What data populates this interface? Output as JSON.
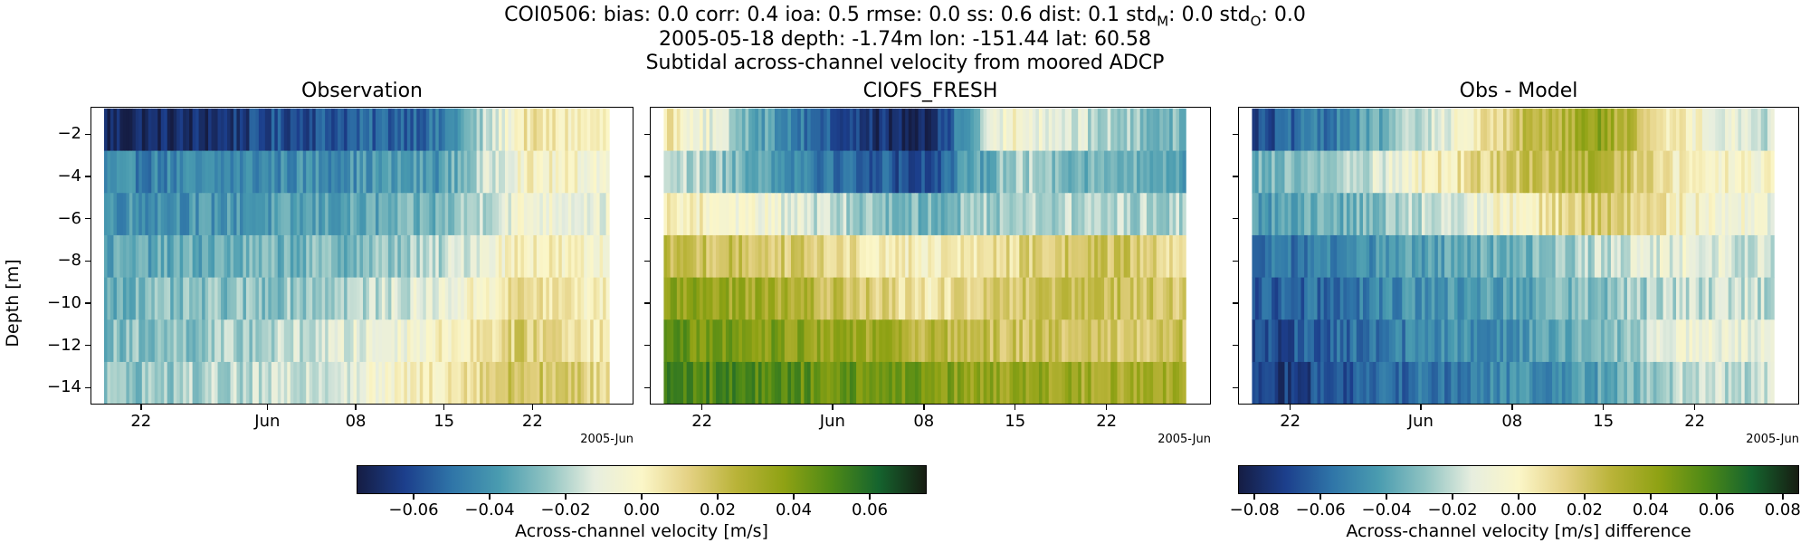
{
  "header": {
    "line1": "COI0506: bias: 0.0  corr: 0.4  ioa: 0.5  rmse: 0.0  ss: 0.6  dist: 0.1  std",
    "std_m_sub": "M",
    "line1_mid": ": 0.0  std",
    "std_o_sub": "O",
    "line1_end": ": 0.0",
    "line2": "2005-05-18 depth: -1.74m lon: -151.44 lat: 60.58",
    "line3": "Subtidal across-channel velocity from moored ADCP"
  },
  "colors": {
    "colormap": [
      "#151d44",
      "#1c3f8c",
      "#2f75a8",
      "#4a9cb0",
      "#8fc3c2",
      "#e7eedf",
      "#fbf6c8",
      "#e4d183",
      "#b9b338",
      "#8fa214",
      "#4f8a16",
      "#15642e",
      "#171d12"
    ]
  },
  "chart_data": [
    {
      "type": "heatmap",
      "title": "Observation",
      "ylabel": "Depth [m]",
      "ylim": [
        -14.8,
        -0.7
      ],
      "yticks": [
        -2,
        -4,
        -6,
        -8,
        -10,
        -12,
        -14
      ],
      "ytick_labels": [
        "−2",
        "−4",
        "−6",
        "−8",
        "−10",
        "−12",
        "−14"
      ],
      "x_range": [
        "2005-05-18",
        "2005-06-30"
      ],
      "x_data_range": [
        "2005-05-19",
        "2005-06-28"
      ],
      "xticks": [
        "2005-05-22",
        "2005-06-01",
        "2005-06-08",
        "2005-06-15",
        "2005-06-22"
      ],
      "xtick_labels": [
        "22",
        "Jun",
        "08",
        "15",
        "22"
      ],
      "date_offset": "2005-Jun",
      "depths": [
        -1.74,
        -3.74,
        -5.74,
        -7.74,
        -9.74,
        -11.74,
        -13.74
      ],
      "clim": [
        -0.075,
        0.075
      ],
      "profile": [
        [
          -0.07,
          -0.07,
          -0.06,
          -0.055,
          -0.05,
          0.005,
          0.0
        ],
        [
          -0.045,
          -0.045,
          -0.043,
          -0.04,
          -0.038,
          0.0,
          -0.005
        ],
        [
          -0.04,
          -0.04,
          -0.038,
          -0.035,
          -0.03,
          -0.005,
          -0.01
        ],
        [
          -0.035,
          -0.033,
          -0.03,
          -0.028,
          -0.02,
          0.005,
          -0.005
        ],
        [
          -0.03,
          -0.028,
          -0.025,
          -0.02,
          -0.01,
          0.01,
          0.0
        ],
        [
          -0.028,
          -0.025,
          -0.02,
          -0.012,
          0.0,
          0.015,
          0.005
        ],
        [
          -0.026,
          -0.022,
          -0.018,
          -0.01,
          0.005,
          0.02,
          0.01
        ]
      ]
    },
    {
      "type": "heatmap",
      "title": "CIOFS_FRESH",
      "ylim": [
        -14.8,
        -0.7
      ],
      "x_range": [
        "2005-05-18",
        "2005-06-30"
      ],
      "x_data_range": [
        "2005-05-19",
        "2005-06-28"
      ],
      "xticks": [
        "2005-05-22",
        "2005-06-01",
        "2005-06-08",
        "2005-06-15",
        "2005-06-22"
      ],
      "xtick_labels": [
        "22",
        "Jun",
        "08",
        "15",
        "22"
      ],
      "date_offset": "2005-Jun",
      "depths": [
        -1.74,
        -3.74,
        -5.74,
        -7.74,
        -9.74,
        -11.74,
        -13.74
      ],
      "clim": [
        -0.075,
        0.075
      ],
      "profile": [
        [
          0.01,
          -0.03,
          -0.06,
          -0.075,
          0.0,
          -0.02,
          -0.03
        ],
        [
          -0.015,
          -0.03,
          -0.05,
          -0.06,
          -0.02,
          -0.03,
          -0.035
        ],
        [
          0.005,
          -0.005,
          -0.02,
          -0.03,
          -0.02,
          -0.02,
          -0.02
        ],
        [
          0.02,
          0.02,
          0.01,
          0.0,
          0.01,
          0.02,
          0.01
        ],
        [
          0.035,
          0.032,
          0.02,
          0.005,
          0.015,
          0.02,
          0.015
        ],
        [
          0.045,
          0.04,
          0.035,
          0.025,
          0.02,
          0.015,
          0.02
        ],
        [
          0.05,
          0.05,
          0.045,
          0.04,
          0.035,
          0.03,
          0.03
        ]
      ]
    },
    {
      "type": "heatmap",
      "title": "Obs - Model",
      "ylim": [
        -14.8,
        -0.7
      ],
      "x_range": [
        "2005-05-18",
        "2005-06-30"
      ],
      "x_data_range": [
        "2005-05-19",
        "2005-06-28"
      ],
      "xticks": [
        "2005-05-22",
        "2005-06-01",
        "2005-06-08",
        "2005-06-15",
        "2005-06-22"
      ],
      "xtick_labels": [
        "22",
        "Jun",
        "08",
        "15",
        "22"
      ],
      "date_offset": "2005-Jun",
      "depths": [
        -1.74,
        -3.74,
        -5.74,
        -7.74,
        -9.74,
        -11.74,
        -13.74
      ],
      "clim": [
        -0.085,
        0.085
      ],
      "profile": [
        [
          -0.07,
          -0.05,
          -0.02,
          0.02,
          0.04,
          0.0,
          -0.02
        ],
        [
          -0.035,
          -0.025,
          0.0,
          0.02,
          0.03,
          0.0,
          -0.005
        ],
        [
          -0.045,
          -0.035,
          -0.02,
          0.0,
          0.02,
          0.0,
          -0.01
        ],
        [
          -0.06,
          -0.05,
          -0.04,
          -0.035,
          -0.02,
          -0.01,
          -0.02
        ],
        [
          -0.065,
          -0.055,
          -0.045,
          -0.04,
          -0.03,
          -0.02,
          -0.02
        ],
        [
          -0.07,
          -0.06,
          -0.05,
          -0.045,
          -0.035,
          -0.01,
          -0.015
        ],
        [
          -0.075,
          -0.065,
          -0.055,
          -0.05,
          -0.04,
          -0.02,
          -0.02
        ]
      ]
    }
  ],
  "colorbars": [
    {
      "label": "Across-channel velocity [m/s]",
      "range": [
        -0.075,
        0.075
      ],
      "ticks": [
        -0.06,
        -0.04,
        -0.02,
        0.0,
        0.02,
        0.04,
        0.06
      ],
      "tick_labels": [
        "−0.06",
        "−0.04",
        "−0.02",
        "0.00",
        "0.02",
        "0.04",
        "0.06"
      ]
    },
    {
      "label": "Across-channel velocity [m/s] difference",
      "range": [
        -0.085,
        0.085
      ],
      "ticks": [
        -0.08,
        -0.06,
        -0.04,
        -0.02,
        0.0,
        0.02,
        0.04,
        0.06,
        0.08
      ],
      "tick_labels": [
        "−0.08",
        "−0.06",
        "−0.04",
        "−0.02",
        "0.00",
        "0.02",
        "0.04",
        "0.06",
        "0.08"
      ]
    }
  ]
}
